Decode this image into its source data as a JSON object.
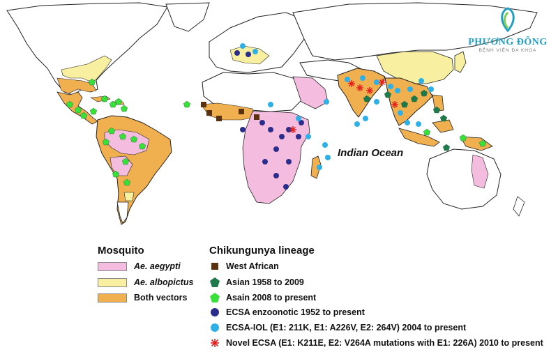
{
  "colors": {
    "aegypti": "#f4bde0",
    "albopictus": "#f8f0a0",
    "both": "#f0b050",
    "west_african": "#5a3210",
    "asian_1958": "#1e7a4a",
    "asian_2008": "#39e039",
    "ecsa_enzootic": "#2b2d8a",
    "ecsa_iol": "#2eb0e6",
    "novel_ecsa": "#e41c1c",
    "land": "#ffffff",
    "border": "#222222"
  },
  "map": {
    "ocean_label": "Indian Ocean"
  },
  "logo": {
    "name": "PHƯƠNG ĐÔNG",
    "subtitle": "BỆNH VIỆN ĐA KHOA",
    "icon": "leaf-logo-icon"
  },
  "legend_mosquito": {
    "title": "Mosquito",
    "items": [
      {
        "label": "Ae. aegypti"
      },
      {
        "label": "Ae. albopictus"
      },
      {
        "label": "Both vectors"
      }
    ]
  },
  "legend_lineage": {
    "title": "Chikungunya lineage",
    "items": [
      {
        "label": "West African",
        "symbol": "square-icon"
      },
      {
        "label": "Asian 1958 to 2009",
        "symbol": "pentagon-icon"
      },
      {
        "label": "Asain 2008 to present",
        "symbol": "pentagon-icon"
      },
      {
        "label": "ECSA enzoonotic 1952 to present",
        "symbol": "circle-icon"
      },
      {
        "label": "ECSA-IOL (E1: 211K, E1: A226V, E2: 264V) 2004 to present",
        "symbol": "circle-icon"
      },
      {
        "label": "Novel ECSA (E1: K211E, E2: V264A mutations with E1: 226A) 2010 to present",
        "symbol": "star-burst-icon"
      }
    ]
  }
}
